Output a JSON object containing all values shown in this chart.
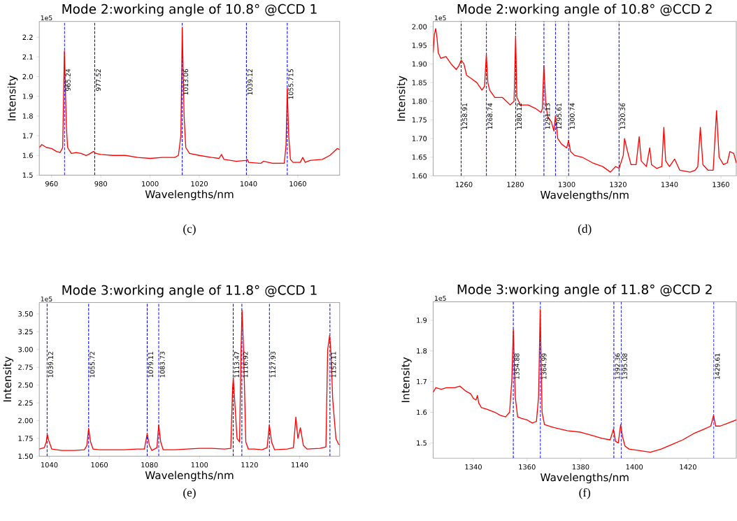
{
  "chart_data": [
    {
      "type": "line",
      "title": "Mode 2:working angle of 10.8° @CCD 1",
      "xlabel": "Wavelengths/nm",
      "ylabel": "Intensity",
      "annotations": [
        "1e5",
        "(c)"
      ],
      "color": "#ff0000",
      "xlim": [
        955,
        1077
      ],
      "ylim": [
        1.5,
        2.28
      ],
      "xticks": [
        960,
        980,
        1000,
        1020,
        1040,
        1060
      ],
      "yticks": [
        1.5,
        1.6,
        1.7,
        1.8,
        1.9,
        {
          "value": 2.0,
          "label": "2.0"
        },
        2.1,
        2.2
      ],
      "x": [
        955,
        956,
        958,
        960,
        962,
        963.5,
        964.5,
        965.2,
        966,
        966.5,
        968,
        970,
        972,
        974,
        975,
        977,
        978,
        980,
        985,
        990,
        995,
        1000,
        1005,
        1010,
        1011.5,
        1012.5,
        1013.06,
        1013.8,
        1014.5,
        1016,
        1020,
        1025,
        1028,
        1029,
        1030,
        1035,
        1039,
        1039.5,
        1040,
        1045,
        1046,
        1050,
        1054.5,
        1055.2,
        1055.7,
        1056.3,
        1057,
        1058,
        1061,
        1062,
        1063,
        1065,
        1070,
        1073,
        1076,
        1077
      ],
      "values": [
        1.64,
        1.655,
        1.64,
        1.635,
        1.62,
        1.615,
        1.64,
        2.13,
        1.75,
        1.64,
        1.61,
        1.615,
        1.61,
        1.6,
        1.605,
        1.62,
        1.61,
        1.605,
        1.6,
        1.6,
        1.59,
        1.585,
        1.59,
        1.59,
        1.6,
        1.7,
        2.25,
        1.8,
        1.64,
        1.61,
        1.6,
        1.59,
        1.585,
        1.605,
        1.58,
        1.57,
        1.575,
        1.58,
        1.565,
        1.56,
        1.57,
        1.56,
        1.56,
        1.65,
        1.94,
        1.7,
        1.58,
        1.565,
        1.565,
        1.59,
        1.565,
        1.575,
        1.58,
        1.6,
        1.635,
        1.63
      ],
      "ref_lines": [
        {
          "axis": "x",
          "value": 965.24,
          "label": "965.24",
          "color": "#0000ff",
          "line_style": "dashed"
        },
        {
          "axis": "x",
          "value": 977.52,
          "label": "977.52",
          "color": "#0000ff",
          "line_style": "dashed"
        },
        {
          "axis": "x",
          "value": 1013.06,
          "label": "1013.06",
          "color": "#0000ff",
          "line_style": "dashed"
        },
        {
          "axis": "x",
          "value": 1039.12,
          "label": "1039.12",
          "color": "#0000ff",
          "line_style": "dashed"
        },
        {
          "axis": "x",
          "value": 1055.715,
          "label": "1055.715",
          "color": "#0000ff",
          "line_style": "dashed"
        }
      ]
    },
    {
      "type": "line",
      "title": "Mode 2:working angle of 10.8° @CCD 2",
      "xlabel": "Wavelengths/nm",
      "ylabel": "Intensity",
      "annotations": [
        "1e5",
        "(d)"
      ],
      "color": "#ff0000",
      "xlim": [
        1248,
        1366
      ],
      "ylim": [
        1.6,
        2.014
      ],
      "xticks": [
        1260,
        1280,
        1300,
        1320,
        1340,
        1360
      ],
      "yticks": [
        {
          "value": 1.6,
          "label": "1.60"
        },
        {
          "value": 1.65,
          "label": "1.65"
        },
        {
          "value": 1.7,
          "label": "1.70"
        },
        {
          "value": 1.75,
          "label": "1.75"
        },
        {
          "value": 1.8,
          "label": "1.80"
        },
        {
          "value": 1.85,
          "label": "1.85"
        },
        {
          "value": 1.9,
          "label": "1.90"
        },
        {
          "value": 1.95,
          "label": "1.95"
        },
        {
          "value": 2.0,
          "label": "2.00"
        }
      ],
      "x": [
        1248,
        1248.5,
        1249,
        1249.5,
        1250,
        1251,
        1253,
        1255,
        1257,
        1258,
        1258.9,
        1260,
        1261,
        1263,
        1265,
        1267,
        1268,
        1268.7,
        1269.3,
        1270,
        1272,
        1275,
        1278,
        1279.5,
        1280.1,
        1280.6,
        1282,
        1285,
        1288,
        1290,
        1290.5,
        1291.1,
        1291.8,
        1292.5,
        1294,
        1295,
        1295.6,
        1296.5,
        1298,
        1300,
        1300.7,
        1301.5,
        1303,
        1306,
        1310,
        1314,
        1317,
        1319,
        1320.4,
        1322,
        1322.5,
        1323.5,
        1325,
        1327,
        1328.2,
        1329,
        1331,
        1332.3,
        1333,
        1335,
        1337,
        1337.8,
        1338.5,
        1340,
        1342,
        1344,
        1348,
        1350,
        1351,
        1352,
        1353,
        1355,
        1357,
        1358.3,
        1359.3,
        1361,
        1362.5,
        1363.5,
        1365,
        1366
      ],
      "values": [
        1.93,
        1.98,
        1.995,
        1.97,
        1.93,
        1.915,
        1.92,
        1.9,
        1.885,
        1.895,
        1.91,
        1.9,
        1.87,
        1.86,
        1.85,
        1.83,
        1.84,
        1.925,
        1.85,
        1.83,
        1.81,
        1.81,
        1.79,
        1.8,
        1.975,
        1.81,
        1.79,
        1.79,
        1.78,
        1.77,
        1.78,
        1.895,
        1.8,
        1.76,
        1.745,
        1.72,
        1.76,
        1.7,
        1.685,
        1.675,
        1.695,
        1.665,
        1.655,
        1.65,
        1.635,
        1.625,
        1.61,
        1.625,
        1.62,
        1.655,
        1.7,
        1.67,
        1.63,
        1.63,
        1.705,
        1.64,
        1.625,
        1.675,
        1.63,
        1.62,
        1.625,
        1.73,
        1.64,
        1.625,
        1.645,
        1.615,
        1.61,
        1.615,
        1.625,
        1.73,
        1.63,
        1.615,
        1.615,
        1.775,
        1.65,
        1.63,
        1.635,
        1.665,
        1.66,
        1.635
      ],
      "ref_lines": [
        {
          "axis": "x",
          "value": 1258.91,
          "label": "1258.91",
          "color": "#0000ff",
          "line_style": "dashed"
        },
        {
          "axis": "x",
          "value": 1268.74,
          "label": "1268.74",
          "color": "#0000ff",
          "line_style": "dashed"
        },
        {
          "axis": "x",
          "value": 1280.12,
          "label": "1280.12",
          "color": "#0000ff",
          "line_style": "dashed"
        },
        {
          "axis": "x",
          "value": 1291.13,
          "label": "1291.13",
          "color": "#0000ff",
          "line_style": "dashed"
        },
        {
          "axis": "x",
          "value": 1295.61,
          "label": "1295.61",
          "color": "#0000ff",
          "line_style": "dashed"
        },
        {
          "axis": "x",
          "value": 1300.74,
          "label": "1300.74",
          "color": "#0000ff",
          "line_style": "dashed"
        },
        {
          "axis": "x",
          "value": 1320.36,
          "label": "1320.36",
          "color": "#0000ff",
          "line_style": "dashed"
        }
      ]
    },
    {
      "type": "line",
      "title": "Mode 3:working angle of 11.8° @CCD 1",
      "xlabel": "Wavelengths/nm",
      "ylabel": "Intensity",
      "annotations": [
        "1e5",
        "(e)"
      ],
      "color": "#ff0000",
      "xlim": [
        1036,
        1156
      ],
      "ylim": [
        1.5,
        3.66
      ],
      "xticks": [
        1040,
        1060,
        1080,
        1100,
        1120,
        1140
      ],
      "yticks": [
        {
          "value": 1.5,
          "label": "1.50"
        },
        {
          "value": 1.75,
          "label": "1.75"
        },
        {
          "value": 2.0,
          "label": "2.00"
        },
        {
          "value": 2.25,
          "label": "2.25"
        },
        {
          "value": 2.5,
          "label": "2.50"
        },
        {
          "value": 2.75,
          "label": "2.75"
        },
        {
          "value": 3.0,
          "label": "3.00"
        },
        {
          "value": 3.25,
          "label": "3.25"
        },
        {
          "value": 3.5,
          "label": "3.50"
        }
      ],
      "x": [
        1036,
        1038,
        1038.8,
        1039.2,
        1039.8,
        1041,
        1045,
        1050,
        1054,
        1055,
        1055.7,
        1056.5,
        1057.5,
        1060,
        1065,
        1070,
        1075,
        1078,
        1079.1,
        1080,
        1081,
        1083,
        1083.7,
        1084.5,
        1085.5,
        1090,
        1095,
        1100,
        1105,
        1110,
        1112.5,
        1113.2,
        1113.5,
        1114.2,
        1115,
        1116,
        1116.6,
        1117,
        1117.6,
        1118.5,
        1119.5,
        1122,
        1125,
        1127,
        1127.9,
        1128.8,
        1130,
        1135,
        1137.5,
        1138.5,
        1139.3,
        1140.3,
        1141.5,
        1143,
        1148,
        1150.5,
        1151.2,
        1152,
        1152.6,
        1153.2,
        1154.5,
        1155.5,
        1156
      ],
      "values": [
        1.6,
        1.62,
        1.7,
        1.81,
        1.72,
        1.6,
        1.58,
        1.58,
        1.59,
        1.65,
        1.89,
        1.7,
        1.6,
        1.59,
        1.59,
        1.59,
        1.6,
        1.6,
        1.82,
        1.65,
        1.58,
        1.62,
        1.94,
        1.7,
        1.59,
        1.59,
        1.6,
        1.61,
        1.61,
        1.6,
        1.61,
        2.45,
        2.6,
        2.2,
        1.75,
        1.7,
        3.0,
        3.55,
        3.0,
        1.7,
        1.6,
        1.6,
        1.59,
        1.62,
        1.94,
        1.7,
        1.59,
        1.6,
        1.62,
        2.05,
        1.75,
        1.9,
        1.65,
        1.6,
        1.61,
        1.63,
        3.0,
        3.2,
        2.9,
        2.3,
        1.75,
        1.67,
        1.66
      ],
      "ref_lines": [
        {
          "axis": "x",
          "value": 1039.12,
          "label": "1039.12",
          "color": "#0000ff",
          "line_style": "dashed"
        },
        {
          "axis": "x",
          "value": 1055.72,
          "label": "1055.72",
          "color": "#0000ff",
          "line_style": "dashed"
        },
        {
          "axis": "x",
          "value": 1079.11,
          "label": "1079.11",
          "color": "#0000ff",
          "line_style": "dashed"
        },
        {
          "axis": "x",
          "value": 1083.73,
          "label": "1083.73",
          "color": "#0000ff",
          "line_style": "dashed"
        },
        {
          "axis": "x",
          "value": 1113.47,
          "label": "1113.47",
          "color": "#0000ff",
          "line_style": "dashed"
        },
        {
          "axis": "x",
          "value": 1116.92,
          "label": "1116.92",
          "color": "#0000ff",
          "line_style": "dashed"
        },
        {
          "axis": "x",
          "value": 1127.93,
          "label": "1127.93",
          "color": "#0000ff",
          "line_style": "dashed"
        },
        {
          "axis": "x",
          "value": 1152.11,
          "label": "1152.11",
          "color": "#0000ff",
          "line_style": "dashed"
        }
      ]
    },
    {
      "type": "line",
      "title": "Mode 3:working angle of 11.8° @CCD 2",
      "xlabel": "Wavelengths/nm",
      "ylabel": "Intensity",
      "annotations": [
        "1e5",
        "(f)"
      ],
      "color": "#ff0000",
      "xlim": [
        1325,
        1438
      ],
      "ylim": [
        1.45,
        1.96
      ],
      "xticks": [
        1340,
        1360,
        1380,
        1400,
        1420
      ],
      "yticks": [
        1.5,
        1.6,
        1.7,
        1.8,
        1.9
      ],
      "x": [
        1325,
        1326,
        1328,
        1330,
        1333,
        1335,
        1337,
        1339,
        1340,
        1341,
        1341.5,
        1342,
        1343,
        1345,
        1348,
        1350,
        1352,
        1353.5,
        1354.3,
        1354.9,
        1355.6,
        1356.5,
        1358,
        1360,
        1362,
        1363.5,
        1364.3,
        1364.9,
        1365.6,
        1366.5,
        1370,
        1375,
        1380,
        1384,
        1388,
        1391,
        1392.2,
        1393,
        1394,
        1394.9,
        1395.6,
        1396.5,
        1398,
        1402,
        1406,
        1410,
        1414,
        1418,
        1422,
        1426,
        1428.5,
        1429.5,
        1430.3,
        1432,
        1435,
        1438
      ],
      "values": [
        1.665,
        1.68,
        1.675,
        1.68,
        1.68,
        1.685,
        1.67,
        1.66,
        1.645,
        1.64,
        1.655,
        1.63,
        1.615,
        1.61,
        1.6,
        1.59,
        1.585,
        1.6,
        1.7,
        1.87,
        1.65,
        1.585,
        1.58,
        1.575,
        1.565,
        1.57,
        1.65,
        1.935,
        1.6,
        1.56,
        1.55,
        1.54,
        1.535,
        1.525,
        1.515,
        1.51,
        1.545,
        1.505,
        1.5,
        1.56,
        1.52,
        1.49,
        1.48,
        1.475,
        1.47,
        1.48,
        1.495,
        1.51,
        1.53,
        1.545,
        1.555,
        1.59,
        1.555,
        1.555,
        1.565,
        1.575
      ],
      "ref_lines": [
        {
          "axis": "x",
          "value": 1354.88,
          "label": "1354.88",
          "color": "#0000ff",
          "line_style": "dashed"
        },
        {
          "axis": "x",
          "value": 1364.99,
          "label": "1364.99",
          "color": "#0000ff",
          "line_style": "dashed"
        },
        {
          "axis": "x",
          "value": 1392.36,
          "label": "1392.36",
          "color": "#0000ff",
          "line_style": "dashed"
        },
        {
          "axis": "x",
          "value": 1395.08,
          "label": "1395.08",
          "color": "#0000ff",
          "line_style": "dashed"
        },
        {
          "axis": "x",
          "value": 1429.61,
          "label": "1429.61",
          "color": "#0000ff",
          "line_style": "dashed"
        }
      ]
    }
  ]
}
